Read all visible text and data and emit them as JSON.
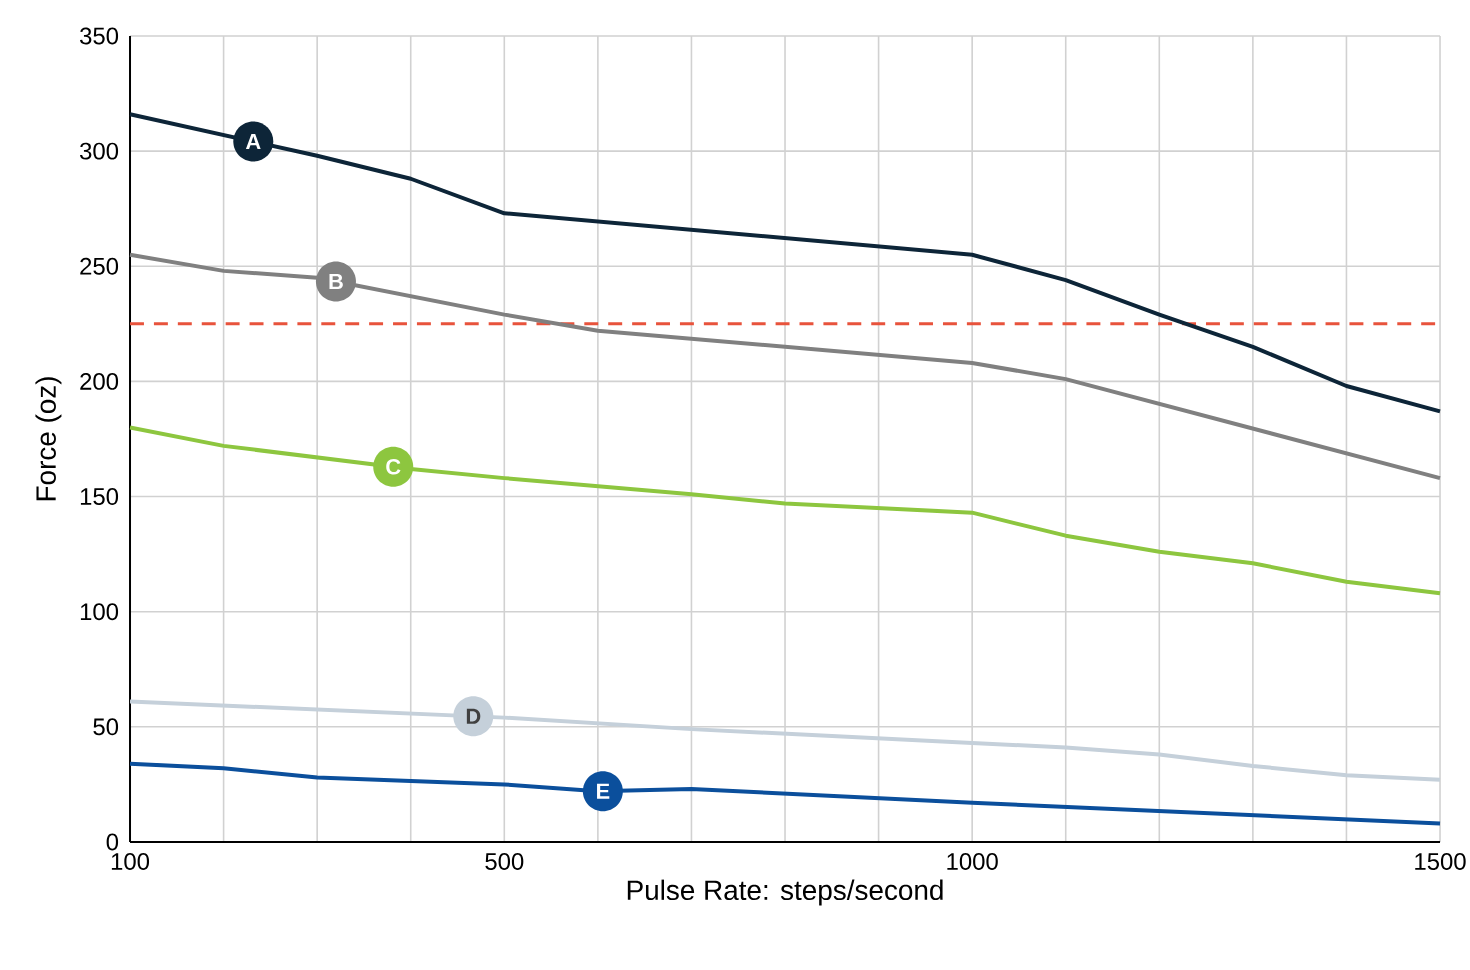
{
  "chart_data": {
    "type": "line",
    "xlabel": "Pulse Rate: steps/second",
    "ylabel": "Force (oz)",
    "xlim": [
      100,
      1500
    ],
    "ylim": [
      0,
      350
    ],
    "xticks": [
      100,
      {
        "value": 200,
        "label": null
      },
      {
        "value": 300,
        "label": null
      },
      {
        "value": 400,
        "label": null
      },
      500,
      {
        "value": 600,
        "label": null
      },
      {
        "value": 700,
        "label": null
      },
      {
        "value": 800,
        "label": null
      },
      {
        "value": 900,
        "label": null
      },
      1000,
      {
        "value": 1100,
        "label": null
      },
      {
        "value": 1200,
        "label": null
      },
      {
        "value": 1300,
        "label": null
      },
      {
        "value": 1400,
        "label": null
      },
      1500
    ],
    "yticks": [
      0,
      50,
      100,
      150,
      200,
      250,
      300,
      350
    ],
    "grid": true,
    "line_style": "solid",
    "ref_lines": [
      {
        "axis": "y",
        "value": 225,
        "color": "#e8533c",
        "line_style": "dashed"
      }
    ],
    "series": [
      {
        "name": "A",
        "color": "#0d2538",
        "x": [
          100,
          300,
          400,
          500,
          1000,
          1100,
          1200,
          1300,
          1400,
          1500
        ],
        "values": [
          316,
          298,
          288,
          273,
          255,
          244,
          229,
          215,
          198,
          187
        ]
      },
      {
        "name": "B",
        "color": "#808080",
        "x": [
          100,
          200,
          300,
          400,
          500,
          600,
          1000,
          1100,
          1500
        ],
        "values": [
          255,
          248,
          245,
          237,
          229,
          222,
          208,
          201,
          158
        ]
      },
      {
        "name": "C",
        "color": "#8dc63f",
        "x": [
          100,
          200,
          400,
          500,
          700,
          800,
          1000,
          1100,
          1200,
          1300,
          1400,
          1500
        ],
        "values": [
          180,
          172,
          162,
          158,
          151,
          147,
          143,
          133,
          126,
          121,
          113,
          108
        ]
      },
      {
        "name": "D",
        "color": "#c5d0da",
        "x": [
          100,
          500,
          700,
          1000,
          1100,
          1200,
          1300,
          1400,
          1500
        ],
        "values": [
          61,
          54,
          49,
          43,
          41,
          38,
          33,
          29,
          27
        ]
      },
      {
        "name": "E",
        "color": "#0b4f9c",
        "x": [
          100,
          200,
          300,
          500,
          600,
          700,
          1000,
          1500
        ],
        "values": [
          34,
          32,
          28,
          25,
          22,
          23,
          17,
          8
        ]
      }
    ]
  }
}
